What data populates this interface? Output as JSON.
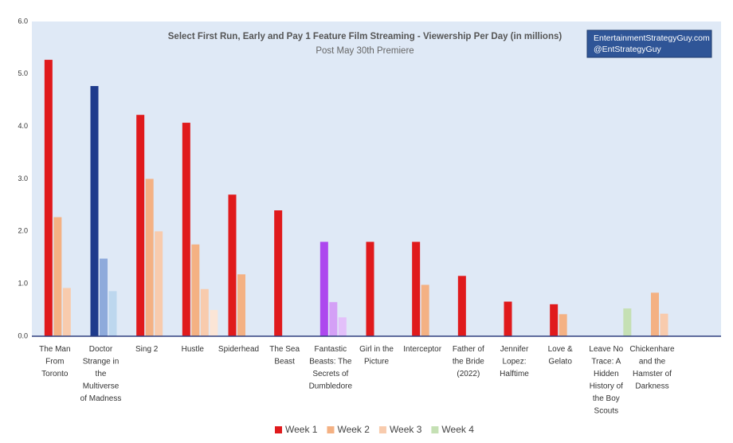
{
  "chart_data": {
    "type": "bar",
    "title": "Select First Run, Early and Pay 1 Feature Film Streaming - Viewership Per Day (in millions)",
    "subtitle": "Post May 30th Premiere",
    "annotations": [
      "EntertainmentStrategyGuy.com",
      "@EntStrategyGuy"
    ],
    "categories": [
      "The Man From Toronto",
      "Doctor Strange in the Multiverse of Madness",
      "Sing 2",
      "Hustle",
      "Spiderhead",
      "The Sea Beast",
      "Fantastic Beasts: The Secrets of Dumbledore",
      "Girl in the Picture",
      "Interceptor",
      "Father of the Bride (2022)",
      "Jennifer Lopez: Halftime",
      "Love & Gelato",
      "Leave No Trace: A Hidden History of the Boy Scouts",
      "Chickenhare and the Hamster of Darkness"
    ],
    "series": [
      {
        "name": "Week 1",
        "color": "#e01a1c",
        "colors": [
          "#e01a1c",
          "#1f3b8c",
          "#e01a1c",
          "#e01a1c",
          "#e01a1c",
          "#e01a1c",
          "#ad48ee",
          "#e01a1c",
          "#e01a1c",
          "#e01a1c",
          "#e01a1c",
          "#e01a1c",
          "#e01a1c",
          "#e01a1c"
        ],
        "values": [
          5.27,
          4.77,
          4.22,
          4.07,
          2.7,
          2.4,
          1.8,
          1.8,
          1.8,
          1.15,
          0.66,
          0.61,
          null,
          null
        ]
      },
      {
        "name": "Week 2",
        "color": "#f4b183",
        "colors": [
          "#f4b183",
          "#8eaadb",
          "#f4b183",
          "#f4b183",
          "#f4b183",
          "#f4b183",
          "#d4a0f6",
          "#f4b183",
          "#f4b183",
          "#f4b183",
          "#f4b183",
          "#f4b183",
          "#f4b183",
          "#f4b183"
        ],
        "values": [
          2.27,
          1.48,
          3.0,
          1.75,
          1.18,
          null,
          0.65,
          null,
          0.98,
          null,
          null,
          0.42,
          null,
          0.83
        ]
      },
      {
        "name": "Week 3",
        "color": "#f8cbad",
        "colors": [
          "#f8cbad",
          "#bdd7ee",
          "#f8cbad",
          "#f8cbad",
          "#f8cbad",
          "#f8cbad",
          "#e3c0fa",
          "#f8cbad",
          "#f8cbad",
          "#f8cbad",
          "#f8cbad",
          "#f8cbad",
          "#f8cbad",
          "#f8cbad"
        ],
        "values": [
          0.92,
          0.86,
          2.0,
          0.9,
          null,
          null,
          0.36,
          null,
          null,
          null,
          null,
          null,
          null,
          0.43
        ]
      },
      {
        "name": "Week 4",
        "color": "#c5e0b4",
        "colors": [
          "#c5e0b4",
          "#c5e0b4",
          "#c5e0b4",
          "#fbe5d6",
          "#c5e0b4",
          "#c5e0b4",
          "#c5e0b4",
          "#c5e0b4",
          "#c5e0b4",
          "#c5e0b4",
          "#c5e0b4",
          "#c5e0b4",
          "#c5e0b4",
          "#c5e0b4"
        ],
        "values": [
          null,
          null,
          null,
          0.5,
          null,
          null,
          null,
          null,
          null,
          null,
          null,
          null,
          0.53,
          null
        ]
      }
    ],
    "ylim": [
      0,
      6
    ],
    "yticks": [
      {
        "value": 0,
        "label": "0.0"
      },
      {
        "value": 1,
        "label": "1.0"
      },
      {
        "value": 2,
        "label": "2.0"
      },
      {
        "value": 3,
        "label": "3.0"
      },
      {
        "value": 4,
        "label": "4.0"
      },
      {
        "value": 5,
        "label": "5.0"
      },
      {
        "value": 6,
        "label": "6.0"
      }
    ],
    "grid": false,
    "legend": "bottom"
  }
}
